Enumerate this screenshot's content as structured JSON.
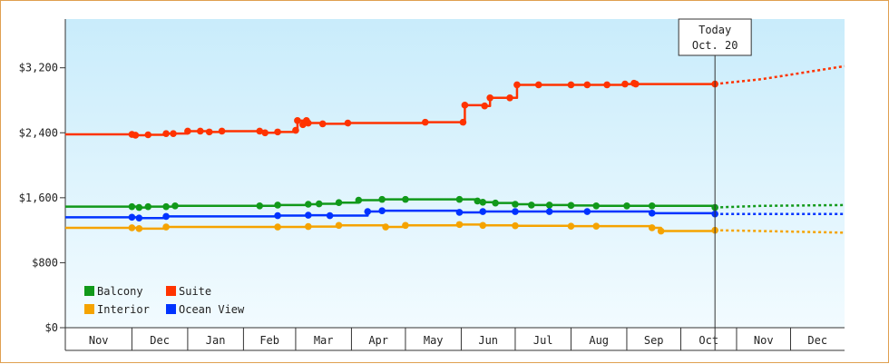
{
  "chart_data": {
    "type": "line",
    "ylim": [
      0,
      3800
    ],
    "y_ticks": [
      {
        "value": 0,
        "label": "$0"
      },
      {
        "value": 800,
        "label": "$800"
      },
      {
        "value": 1600,
        "label": "$1,600"
      },
      {
        "value": 2400,
        "label": "$2,400"
      },
      {
        "value": 3200,
        "label": "$3,200"
      }
    ],
    "x_range": [
      "2023-10-25",
      "2024-12-31"
    ],
    "x_ticks": [
      {
        "start": "2023-10-25",
        "end": "2023-12-01",
        "label": "Nov"
      },
      {
        "start": "2023-12-01",
        "end": "2024-01-01",
        "label": "Dec"
      },
      {
        "start": "2024-01-01",
        "end": "2024-02-01",
        "label": "Jan"
      },
      {
        "start": "2024-02-01",
        "end": "2024-03-01",
        "label": "Feb"
      },
      {
        "start": "2024-03-01",
        "end": "2024-04-01",
        "label": "Mar"
      },
      {
        "start": "2024-04-01",
        "end": "2024-05-01",
        "label": "Apr"
      },
      {
        "start": "2024-05-01",
        "end": "2024-06-01",
        "label": "May"
      },
      {
        "start": "2024-06-01",
        "end": "2024-07-01",
        "label": "Jun"
      },
      {
        "start": "2024-07-01",
        "end": "2024-08-01",
        "label": "Jul"
      },
      {
        "start": "2024-08-01",
        "end": "2024-09-01",
        "label": "Aug"
      },
      {
        "start": "2024-09-01",
        "end": "2024-10-01",
        "label": "Sep"
      },
      {
        "start": "2024-10-01",
        "end": "2024-11-01",
        "label": "Oct"
      },
      {
        "start": "2024-11-01",
        "end": "2024-12-01",
        "label": "Nov"
      },
      {
        "start": "2024-12-01",
        "end": "2024-12-31",
        "label": "Dec"
      }
    ],
    "today": {
      "date": "2024-10-20",
      "label_line1": "Today",
      "label_line2": "Oct. 20"
    },
    "legend_position": "bottom-left",
    "grid": false,
    "series": [
      {
        "name": "Suite",
        "color": "#ff3300",
        "points": [
          [
            "2023-10-25",
            2380
          ],
          [
            "2023-12-01",
            2380
          ],
          [
            "2023-12-03",
            2370
          ],
          [
            "2023-12-10",
            2375
          ],
          [
            "2023-12-20",
            2390
          ],
          [
            "2023-12-24",
            2390
          ],
          [
            "2024-01-01",
            2420
          ],
          [
            "2024-01-08",
            2420
          ],
          [
            "2024-01-13",
            2410
          ],
          [
            "2024-01-20",
            2420
          ],
          [
            "2024-02-10",
            2420
          ],
          [
            "2024-02-13",
            2400
          ],
          [
            "2024-02-20",
            2410
          ],
          [
            "2024-03-01",
            2430
          ],
          [
            "2024-03-02",
            2550
          ],
          [
            "2024-03-05",
            2500
          ],
          [
            "2024-03-07",
            2550
          ],
          [
            "2024-03-08",
            2520
          ],
          [
            "2024-03-16",
            2510
          ],
          [
            "2024-03-30",
            2520
          ],
          [
            "2024-05-12",
            2530
          ],
          [
            "2024-06-02",
            2530
          ],
          [
            "2024-06-03",
            2740
          ],
          [
            "2024-06-14",
            2730
          ],
          [
            "2024-06-17",
            2830
          ],
          [
            "2024-06-28",
            2830
          ],
          [
            "2024-07-02",
            2990
          ],
          [
            "2024-07-14",
            2990
          ],
          [
            "2024-08-01",
            2990
          ],
          [
            "2024-08-10",
            2990
          ],
          [
            "2024-08-21",
            2990
          ],
          [
            "2024-08-31",
            3000
          ],
          [
            "2024-09-05",
            3010
          ],
          [
            "2024-09-06",
            3000
          ],
          [
            "2024-10-20",
            3000
          ]
        ],
        "forecast": [
          [
            "2024-10-20",
            3000
          ],
          [
            "2024-11-15",
            3060
          ],
          [
            "2024-12-31",
            3220
          ]
        ]
      },
      {
        "name": "Balcony",
        "color": "#11991a",
        "points": [
          [
            "2023-10-25",
            1490
          ],
          [
            "2023-12-01",
            1490
          ],
          [
            "2023-12-05",
            1480
          ],
          [
            "2023-12-10",
            1490
          ],
          [
            "2023-12-20",
            1490
          ],
          [
            "2023-12-25",
            1500
          ],
          [
            "2024-02-10",
            1500
          ],
          [
            "2024-02-20",
            1510
          ],
          [
            "2024-03-08",
            1520
          ],
          [
            "2024-03-14",
            1525
          ],
          [
            "2024-03-25",
            1540
          ],
          [
            "2024-04-05",
            1570
          ],
          [
            "2024-04-18",
            1580
          ],
          [
            "2024-05-01",
            1580
          ],
          [
            "2024-05-31",
            1580
          ],
          [
            "2024-06-10",
            1560
          ],
          [
            "2024-06-13",
            1545
          ],
          [
            "2024-06-20",
            1535
          ],
          [
            "2024-07-01",
            1520
          ],
          [
            "2024-07-10",
            1510
          ],
          [
            "2024-07-20",
            1510
          ],
          [
            "2024-08-01",
            1505
          ],
          [
            "2024-08-15",
            1500
          ],
          [
            "2024-09-01",
            1500
          ],
          [
            "2024-09-15",
            1500
          ],
          [
            "2024-10-20",
            1480
          ]
        ],
        "forecast": [
          [
            "2024-10-20",
            1480
          ],
          [
            "2024-11-15",
            1500
          ],
          [
            "2024-12-31",
            1510
          ]
        ]
      },
      {
        "name": "Ocean View",
        "color": "#0033ff",
        "points": [
          [
            "2023-10-25",
            1360
          ],
          [
            "2023-12-01",
            1360
          ],
          [
            "2023-12-05",
            1350
          ],
          [
            "2023-12-20",
            1370
          ],
          [
            "2024-02-20",
            1380
          ],
          [
            "2024-03-08",
            1385
          ],
          [
            "2024-03-20",
            1380
          ],
          [
            "2024-04-10",
            1430
          ],
          [
            "2024-04-18",
            1440
          ],
          [
            "2024-05-31",
            1420
          ],
          [
            "2024-06-13",
            1430
          ],
          [
            "2024-07-01",
            1430
          ],
          [
            "2024-07-20",
            1430
          ],
          [
            "2024-08-10",
            1430
          ],
          [
            "2024-09-15",
            1410
          ],
          [
            "2024-10-20",
            1400
          ]
        ],
        "forecast": [
          [
            "2024-10-20",
            1400
          ],
          [
            "2024-12-31",
            1400
          ]
        ]
      },
      {
        "name": "Interior",
        "color": "#f5a300",
        "points": [
          [
            "2023-10-25",
            1230
          ],
          [
            "2023-12-01",
            1230
          ],
          [
            "2023-12-05",
            1220
          ],
          [
            "2023-12-20",
            1240
          ],
          [
            "2024-02-20",
            1240
          ],
          [
            "2024-03-08",
            1245
          ],
          [
            "2024-03-25",
            1260
          ],
          [
            "2024-04-20",
            1240
          ],
          [
            "2024-05-01",
            1260
          ],
          [
            "2024-05-31",
            1270
          ],
          [
            "2024-06-13",
            1260
          ],
          [
            "2024-07-01",
            1255
          ],
          [
            "2024-08-01",
            1250
          ],
          [
            "2024-08-15",
            1250
          ],
          [
            "2024-09-15",
            1230
          ],
          [
            "2024-09-20",
            1190
          ],
          [
            "2024-10-20",
            1200
          ]
        ],
        "forecast": [
          [
            "2024-10-20",
            1200
          ],
          [
            "2024-11-15",
            1190
          ],
          [
            "2024-12-31",
            1170
          ]
        ]
      }
    ],
    "legend": [
      {
        "name": "Balcony",
        "color": "#11991a"
      },
      {
        "name": "Suite",
        "color": "#ff3300"
      },
      {
        "name": "Interior",
        "color": "#f5a300"
      },
      {
        "name": "Ocean View",
        "color": "#0033ff"
      }
    ]
  }
}
